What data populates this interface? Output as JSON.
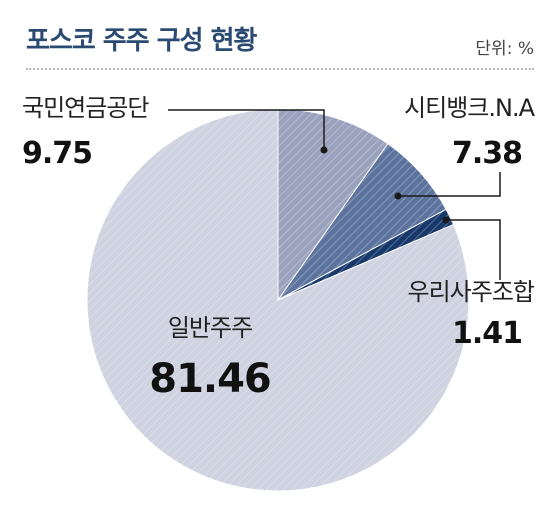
{
  "header": {
    "title": "포스코 주주 구성 현황",
    "unit": "단위: %"
  },
  "chart_data": {
    "type": "pie",
    "title": "포스코 주주 구성 현황",
    "unit": "단위: %",
    "slices": [
      {
        "label": "국민연금공단",
        "value": 9.75,
        "display": "9.75",
        "color": "#9aa1bd"
      },
      {
        "label": "시티뱅크.N.A",
        "value": 7.38,
        "display": "7.38",
        "color": "#5c739e"
      },
      {
        "label": "우리사주조합",
        "value": 1.41,
        "display": "1.41",
        "color": "#17386a"
      },
      {
        "label": "일반주주",
        "value": 81.46,
        "display": "81.46",
        "color": "#cfd2e0"
      }
    ],
    "start_angle": "12 o'clock",
    "direction": "clockwise"
  }
}
